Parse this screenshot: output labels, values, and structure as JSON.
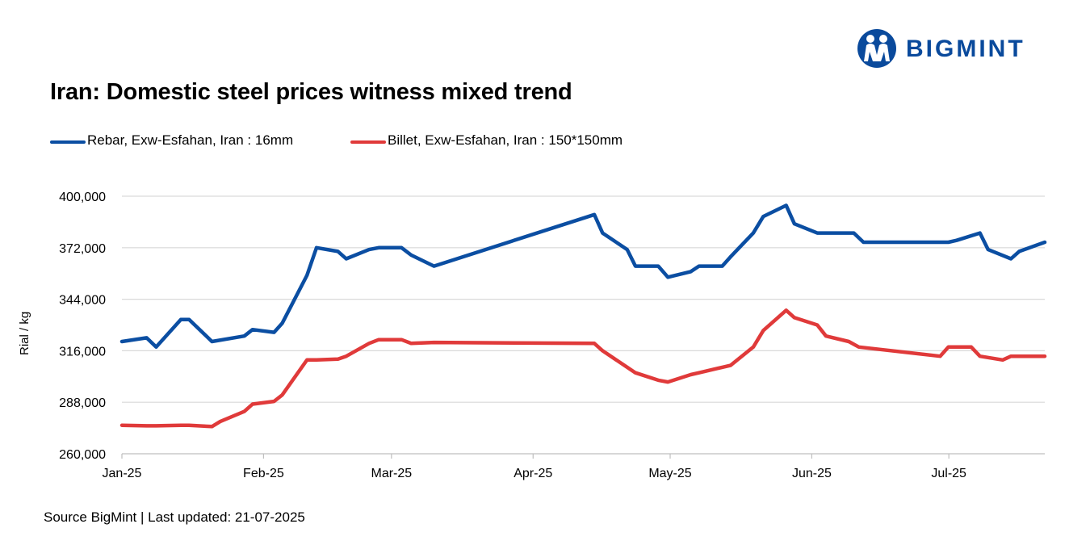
{
  "brand": {
    "name": "BIGMINT",
    "color": "#0a4a9c",
    "icon": "bigmint-people-logo-icon"
  },
  "title": "Iran: Domestic steel prices witness mixed trend",
  "source": "Source BigMint | Last updated: 21-07-2025",
  "chart_data": {
    "type": "line",
    "title": "Iran: Domestic steel prices witness mixed trend",
    "xlabel": "",
    "ylabel": "Rial / kg",
    "ylim": [
      260000,
      400000
    ],
    "yticks": [
      260000,
      288000,
      316000,
      344000,
      372000,
      400000
    ],
    "ytick_labels": [
      "260,000",
      "288,000",
      "316,000",
      "344,000",
      "372,000",
      "400,000"
    ],
    "xlim_days": [
      0,
      202
    ],
    "xticks": [
      {
        "label": "Jan-25",
        "day": 0
      },
      {
        "label": "Feb-25",
        "day": 31
      },
      {
        "label": "Mar-25",
        "day": 59
      },
      {
        "label": "Apr-25",
        "day": 90
      },
      {
        "label": "May-25",
        "day": 120
      },
      {
        "label": "Jun-25",
        "day": 151
      },
      {
        "label": "Jul-25",
        "day": 181
      }
    ],
    "grid": true,
    "legend_position": "top-left",
    "series": [
      {
        "name": "Rebar, Exw-Esfahan, Iran : 16mm",
        "color": "#0b4ea2",
        "points": [
          [
            0,
            321000
          ],
          [
            5.4,
            323000
          ],
          [
            7.5,
            318000
          ],
          [
            12.9,
            333000
          ],
          [
            14.7,
            333000
          ],
          [
            19.7,
            321000
          ],
          [
            26.8,
            324000
          ],
          [
            28.6,
            327500
          ],
          [
            33.3,
            326000
          ],
          [
            35.1,
            331000
          ],
          [
            40.5,
            357000
          ],
          [
            42.6,
            372000
          ],
          [
            47.3,
            370000
          ],
          [
            49.1,
            366000
          ],
          [
            54.1,
            371000
          ],
          [
            56.2,
            372000
          ],
          [
            61.2,
            372000
          ],
          [
            63.3,
            368000
          ],
          [
            68.3,
            362000
          ],
          [
            103.4,
            390000
          ],
          [
            105.2,
            380000
          ],
          [
            110.6,
            371000
          ],
          [
            112.4,
            362000
          ],
          [
            117.4,
            362000
          ],
          [
            119.5,
            356000
          ],
          [
            124.5,
            359000
          ],
          [
            126.3,
            362000
          ],
          [
            131.4,
            362000
          ],
          [
            133.2,
            367000
          ],
          [
            138.2,
            380000
          ],
          [
            140.4,
            389000
          ],
          [
            145.4,
            395000
          ],
          [
            147.2,
            385000
          ],
          [
            152.2,
            380000
          ],
          [
            160.2,
            380000
          ],
          [
            162.3,
            375000
          ],
          [
            180.9,
            375000
          ],
          [
            182.7,
            376000
          ],
          [
            187.8,
            380000
          ],
          [
            189.6,
            371000
          ],
          [
            194.6,
            366000
          ],
          [
            196.4,
            370000
          ],
          [
            202,
            375000
          ]
        ]
      },
      {
        "name": "Billet, Exw-Esfahan, Iran : 150*150mm",
        "color": "#e03a3a",
        "points": [
          [
            0,
            275500
          ],
          [
            5.4,
            275200
          ],
          [
            7.5,
            275200
          ],
          [
            12.9,
            275500
          ],
          [
            14.7,
            275500
          ],
          [
            19.7,
            274800
          ],
          [
            21.5,
            277500
          ],
          [
            26.8,
            283000
          ],
          [
            28.6,
            287000
          ],
          [
            33.3,
            288500
          ],
          [
            35.1,
            292000
          ],
          [
            40.5,
            311000
          ],
          [
            42.6,
            311000
          ],
          [
            47.3,
            311500
          ],
          [
            49.1,
            313000
          ],
          [
            54.1,
            320000
          ],
          [
            56.2,
            322000
          ],
          [
            61.2,
            322000
          ],
          [
            63.3,
            320000
          ],
          [
            68.3,
            320500
          ],
          [
            103.4,
            320000
          ],
          [
            105.2,
            316000
          ],
          [
            110.6,
            307000
          ],
          [
            112.4,
            304000
          ],
          [
            117.4,
            300000
          ],
          [
            119.5,
            299000
          ],
          [
            124.5,
            303000
          ],
          [
            126.3,
            304000
          ],
          [
            131.4,
            307000
          ],
          [
            133.2,
            308000
          ],
          [
            138.2,
            318000
          ],
          [
            140.4,
            327000
          ],
          [
            145.4,
            338000
          ],
          [
            147.2,
            334000
          ],
          [
            152.2,
            330000
          ],
          [
            154.1,
            324000
          ],
          [
            159.1,
            321000
          ],
          [
            161.3,
            318000
          ],
          [
            179.1,
            313000
          ],
          [
            180.9,
            318000
          ],
          [
            185.9,
            318000
          ],
          [
            187.8,
            313000
          ],
          [
            192.8,
            311000
          ],
          [
            194.6,
            313000
          ],
          [
            202,
            313000
          ]
        ]
      }
    ]
  }
}
